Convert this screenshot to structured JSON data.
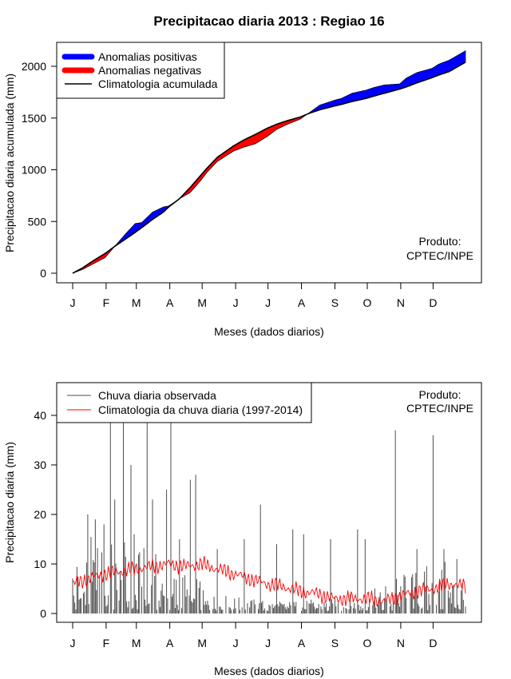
{
  "title": "Precipitacao diaria 2013 : Regiao 16",
  "months": [
    "J",
    "F",
    "M",
    "A",
    "M",
    "J",
    "J",
    "A",
    "S",
    "O",
    "N",
    "D"
  ],
  "note": [
    "Produto:",
    "CPTEC/INPE"
  ],
  "colors": {
    "positive": "#0000ff",
    "negative": "#ff0000",
    "climatology_cum": "#000000",
    "observed_daily": "#4d4d4d",
    "climatology_daily": "#ff0000"
  },
  "chart_data": [
    {
      "type": "area",
      "title": "Precipitacao diaria 2013 : Regiao 16",
      "xlabel": "Meses (dados diarios)",
      "ylabel": "Precipitacao diaria acumulada (mm)",
      "ylim": [
        0,
        2150
      ],
      "yticks": [
        0,
        500,
        1000,
        1500,
        2000
      ],
      "legend_position": "top-left",
      "legend": [
        "Anomalias positivas",
        "Anomalias negativas",
        "Climatologia acumulada"
      ],
      "x": [
        1,
        10,
        20,
        31,
        40,
        50,
        59,
        65,
        75,
        85,
        90,
        100,
        110,
        120,
        125,
        135,
        150,
        160,
        170,
        181,
        190,
        200,
        212,
        220,
        230,
        243,
        250,
        260,
        273,
        280,
        290,
        304,
        310,
        320,
        334,
        340,
        350,
        365
      ],
      "climatology": [
        0,
        50,
        120,
        190,
        260,
        330,
        395,
        440,
        520,
        590,
        640,
        720,
        830,
        950,
        1010,
        1120,
        1230,
        1290,
        1340,
        1400,
        1440,
        1475,
        1510,
        1545,
        1580,
        1615,
        1632,
        1660,
        1690,
        1712,
        1740,
        1780,
        1800,
        1840,
        1890,
        1915,
        1950,
        2040
      ],
      "observed": [
        0,
        35,
        90,
        150,
        260,
        380,
        480,
        490,
        590,
        640,
        650,
        720,
        780,
        900,
        970,
        1080,
        1180,
        1220,
        1250,
        1320,
        1390,
        1440,
        1490,
        1550,
        1625,
        1670,
        1690,
        1740,
        1770,
        1795,
        1820,
        1830,
        1885,
        1940,
        1980,
        2020,
        2060,
        2150
      ]
    },
    {
      "type": "line",
      "xlabel": "Meses (dados diarios)",
      "ylabel": "Precipitacao diaria (mm)",
      "ylim": [
        0,
        45
      ],
      "yticks": [
        0,
        10,
        20,
        30,
        40
      ],
      "legend_position": "top-left",
      "series": [
        {
          "name": "Chuva diaria observada",
          "style": "histogram"
        },
        {
          "name": "Climatologia da chuva diaria (1997-2014)",
          "style": "line"
        }
      ],
      "observed_peaks": [
        [
          15,
          20
        ],
        [
          22,
          19
        ],
        [
          30,
          18
        ],
        [
          36,
          42
        ],
        [
          40,
          23
        ],
        [
          48,
          42
        ],
        [
          55,
          30
        ],
        [
          58,
          16
        ],
        [
          70,
          39
        ],
        [
          75,
          23
        ],
        [
          88,
          25
        ],
        [
          92,
          39
        ],
        [
          100,
          15
        ],
        [
          110,
          27
        ],
        [
          115,
          28
        ],
        [
          135,
          13
        ],
        [
          160,
          15
        ],
        [
          175,
          22
        ],
        [
          190,
          14
        ],
        [
          205,
          17
        ],
        [
          215,
          16
        ],
        [
          240,
          15
        ],
        [
          265,
          17
        ],
        [
          272,
          15
        ],
        [
          300,
          37
        ],
        [
          320,
          13
        ],
        [
          335,
          36
        ],
        [
          345,
          13
        ],
        [
          357,
          11
        ]
      ],
      "climatology_daily": {
        "x": [
          1,
          15,
          31,
          45,
          59,
          75,
          90,
          105,
          120,
          135,
          151,
          165,
          181,
          195,
          212,
          228,
          243,
          258,
          273,
          290,
          304,
          320,
          334,
          350,
          365
        ],
        "y": [
          6,
          7,
          8,
          8.5,
          9,
          9.5,
          10,
          9.5,
          10,
          9,
          8,
          7,
          6,
          5.5,
          4.5,
          4,
          3,
          3,
          3,
          2.5,
          3.5,
          4.5,
          5,
          6,
          5.5
        ]
      }
    }
  ]
}
